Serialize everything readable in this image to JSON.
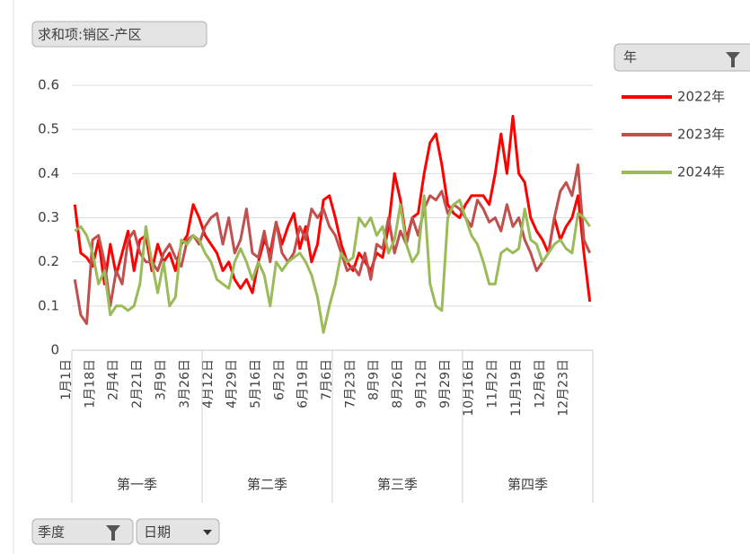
{
  "fields": {
    "value_field": "求和项:销区-产区",
    "legend_field": "年",
    "axis_fields": [
      "季度",
      "日期"
    ]
  },
  "chart_data": {
    "type": "line",
    "categories": [
      "1月1日",
      null,
      null,
      null,
      "1月18日",
      null,
      null,
      null,
      "2月4日",
      null,
      null,
      null,
      "2月21日",
      null,
      null,
      null,
      "3月9日",
      null,
      null,
      null,
      "3月26日",
      null,
      null,
      null,
      "4月12日",
      null,
      null,
      null,
      "4月29日",
      null,
      null,
      null,
      "5月16日",
      null,
      null,
      null,
      "6月2日",
      null,
      null,
      null,
      "6月19日",
      null,
      null,
      null,
      "7月6日",
      null,
      null,
      null,
      "7月23日",
      null,
      null,
      null,
      "8月9日",
      null,
      null,
      null,
      "8月26日",
      null,
      null,
      null,
      "9月12日",
      null,
      null,
      null,
      "9月29日",
      null,
      null,
      null,
      "10月16日",
      null,
      null,
      null,
      "11月2日",
      null,
      null,
      null,
      "11月19日",
      null,
      null,
      null,
      "12月6日",
      null,
      null,
      null,
      "12月23日",
      null,
      null,
      null
    ],
    "quarters": [
      "第一季",
      "第二季",
      "第三季",
      "第四季"
    ],
    "series": [
      {
        "name": "2022年",
        "color": "#ff0000",
        "values": [
          0.33,
          0.22,
          0.21,
          0.19,
          0.25,
          0.15,
          0.24,
          0.17,
          0.22,
          0.27,
          0.18,
          0.25,
          0.26,
          0.18,
          0.24,
          0.2,
          0.22,
          0.18,
          0.24,
          0.26,
          0.33,
          0.3,
          0.26,
          0.24,
          0.22,
          0.18,
          0.2,
          0.16,
          0.14,
          0.16,
          0.13,
          0.2,
          0.25,
          0.22,
          0.29,
          0.24,
          0.28,
          0.31,
          0.23,
          0.28,
          0.2,
          0.24,
          0.34,
          0.35,
          0.3,
          0.24,
          0.2,
          0.18,
          0.22,
          0.2,
          0.18,
          0.22,
          0.21,
          0.28,
          0.4,
          0.34,
          0.25,
          0.3,
          0.31,
          0.4,
          0.47,
          0.49,
          0.42,
          0.33,
          0.31,
          0.3,
          0.33,
          0.35,
          0.35,
          0.35,
          0.33,
          0.4,
          0.49,
          0.4,
          0.53,
          0.4,
          0.38,
          0.3,
          0.27,
          0.25,
          0.22,
          0.3,
          0.25,
          0.28,
          0.3,
          0.35,
          0.22,
          0.11
        ]
      },
      {
        "name": "2023年",
        "color": "#c0504d",
        "values": [
          0.16,
          0.08,
          0.06,
          0.25,
          0.26,
          0.2,
          0.1,
          0.18,
          0.15,
          0.25,
          0.27,
          0.22,
          0.2,
          0.2,
          0.18,
          0.22,
          0.24,
          0.21,
          0.19,
          0.25,
          0.26,
          0.24,
          0.28,
          0.3,
          0.31,
          0.24,
          0.3,
          0.22,
          0.25,
          0.32,
          0.22,
          0.21,
          0.27,
          0.2,
          0.29,
          0.22,
          0.2,
          0.22,
          0.28,
          0.25,
          0.32,
          0.3,
          0.32,
          0.28,
          0.26,
          0.22,
          0.18,
          0.19,
          0.17,
          0.22,
          0.16,
          0.24,
          0.23,
          0.3,
          0.22,
          0.27,
          0.24,
          0.3,
          0.26,
          0.32,
          0.35,
          0.34,
          0.36,
          0.31,
          0.33,
          0.32,
          0.3,
          0.28,
          0.34,
          0.32,
          0.29,
          0.3,
          0.27,
          0.33,
          0.28,
          0.3,
          0.25,
          0.22,
          0.18,
          0.2,
          0.22,
          0.3,
          0.36,
          0.38,
          0.35,
          0.42,
          0.25,
          0.22
        ]
      },
      {
        "name": "2024年",
        "color": "#9bbb59",
        "values": [
          0.27,
          0.28,
          0.26,
          0.22,
          0.15,
          0.18,
          0.08,
          0.1,
          0.1,
          0.09,
          0.1,
          0.15,
          0.28,
          0.2,
          0.13,
          0.2,
          0.1,
          0.12,
          0.25,
          0.24,
          0.26,
          0.25,
          0.22,
          0.2,
          0.16,
          0.15,
          0.14,
          0.2,
          0.23,
          0.2,
          0.16,
          0.2,
          0.17,
          0.1,
          0.2,
          0.18,
          0.2,
          0.21,
          0.22,
          0.2,
          0.17,
          0.12,
          0.04,
          0.1,
          0.15,
          0.22,
          0.2,
          0.21,
          0.3,
          0.28,
          0.3,
          0.26,
          0.28,
          0.22,
          0.25,
          0.33,
          0.24,
          0.2,
          0.22,
          0.35,
          0.15,
          0.1,
          0.09,
          0.3,
          0.33,
          0.34,
          0.3,
          0.26,
          0.24,
          0.2,
          0.15,
          0.15,
          0.22,
          0.23,
          0.22,
          0.23,
          0.32,
          0.25,
          0.24,
          0.2,
          0.22,
          0.24,
          0.25,
          0.23,
          0.22,
          0.31,
          0.3,
          0.28
        ]
      }
    ],
    "ylim": [
      0,
      0.6
    ],
    "yticks": [
      0,
      0.1,
      0.2,
      0.3,
      0.4,
      0.5,
      0.6
    ],
    "grid": true
  }
}
